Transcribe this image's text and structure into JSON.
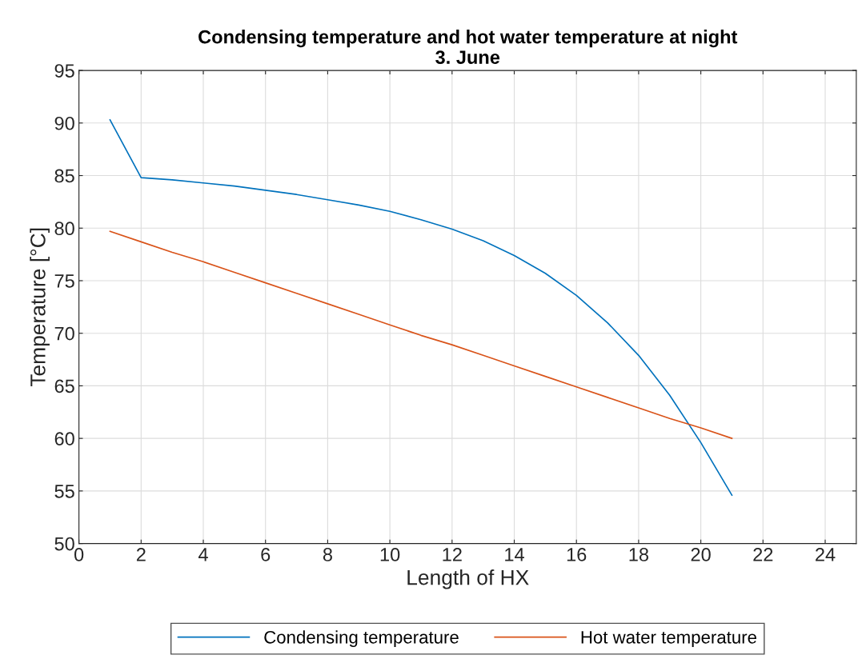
{
  "chart_data": {
    "type": "line",
    "title": "Condensing temperature and hot water temperature at night\n3. June",
    "xlabel": "Length of HX",
    "ylabel": "Temperature [°C]",
    "x": [
      1,
      2,
      3,
      4,
      5,
      6,
      7,
      8,
      9,
      10,
      11,
      12,
      13,
      14,
      15,
      16,
      17,
      18,
      19,
      20,
      21
    ],
    "series": [
      {
        "name": "Condensing temperature",
        "color": "#0072bd",
        "values": [
          90.3,
          84.8,
          84.6,
          84.3,
          84.0,
          83.6,
          83.2,
          82.7,
          82.2,
          81.6,
          80.8,
          79.9,
          78.8,
          77.4,
          75.7,
          73.6,
          71.0,
          67.9,
          64.1,
          59.6,
          54.6
        ]
      },
      {
        "name": "Hot water temperature",
        "color": "#d95319",
        "values": [
          79.7,
          78.7,
          77.7,
          76.8,
          75.8,
          74.8,
          73.8,
          72.8,
          71.8,
          70.8,
          69.8,
          68.9,
          67.9,
          66.9,
          65.9,
          64.9,
          63.9,
          62.9,
          61.9,
          61.0,
          60.0
        ]
      }
    ],
    "xlim": [
      0,
      25
    ],
    "xticks": [
      0,
      2,
      4,
      6,
      8,
      10,
      12,
      14,
      16,
      18,
      20,
      22,
      24
    ],
    "ylim": [
      50,
      95
    ],
    "yticks": [
      50,
      55,
      60,
      65,
      70,
      75,
      80,
      85,
      90,
      95
    ],
    "grid": true,
    "legend": "bottom",
    "marker": "none",
    "line_style": "solid"
  }
}
